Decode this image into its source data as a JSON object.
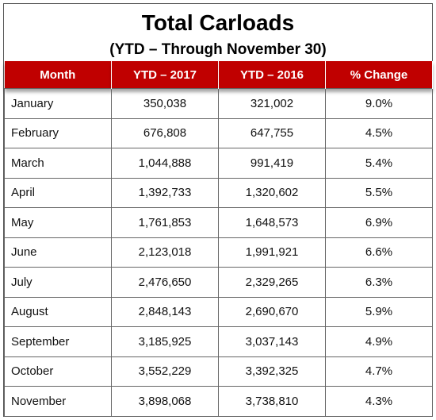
{
  "header": {
    "title": "Total Carloads",
    "subtitle": "(YTD – Through November 30)"
  },
  "table": {
    "columns": [
      "Month",
      "YTD – 2017",
      "YTD – 2016",
      "% Change"
    ],
    "rows": [
      [
        "January",
        "350,038",
        "321,002",
        "9.0%"
      ],
      [
        "February",
        "676,808",
        "647,755",
        "4.5%"
      ],
      [
        "March",
        "1,044,888",
        "991,419",
        "5.4%"
      ],
      [
        "April",
        "1,392,733",
        "1,320,602",
        "5.5%"
      ],
      [
        "May",
        "1,761,853",
        "1,648,573",
        "6.9%"
      ],
      [
        "June",
        "2,123,018",
        "1,991,921",
        "6.6%"
      ],
      [
        "July",
        "2,476,650",
        "2,329,265",
        "6.3%"
      ],
      [
        "August",
        "2,848,143",
        "2,690,670",
        "5.9%"
      ],
      [
        "September",
        "3,185,925",
        "3,037,143",
        "4.9%"
      ],
      [
        "October",
        "3,552,229",
        "3,392,325",
        "4.7%"
      ],
      [
        "November",
        "3,898,068",
        "3,738,810",
        "4.3%"
      ]
    ]
  }
}
